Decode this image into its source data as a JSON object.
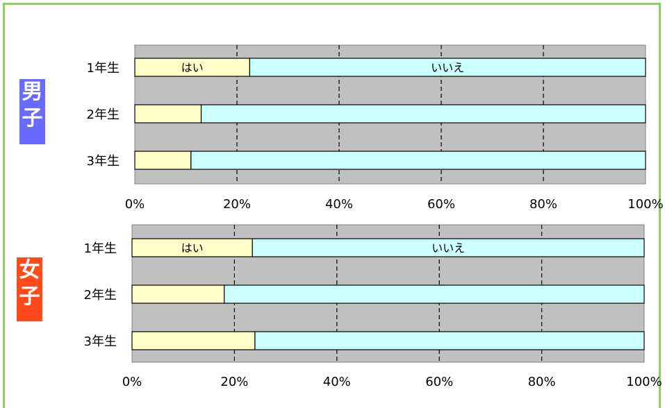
{
  "colors": {
    "frame": "#8fce5b",
    "plot_background": "#c0c0c0",
    "yes": "#ffffc8",
    "no": "#ccffff",
    "male_badge": "#6a6aff",
    "female_badge": "#ff4a1c"
  },
  "badges": {
    "male": [
      "男",
      "子"
    ],
    "female": [
      "女",
      "子"
    ]
  },
  "chart_data": [
    {
      "type": "bar",
      "orientation": "horizontal",
      "stacked": "percent",
      "group": "男子",
      "categories": [
        "1年生",
        "2年生",
        "3年生"
      ],
      "series": [
        {
          "name": "はい",
          "values": [
            22.5,
            13,
            11
          ]
        },
        {
          "name": "いいえ",
          "values": [
            77.5,
            87,
            89
          ]
        }
      ],
      "xlim": [
        0,
        100
      ],
      "xticks": [
        "0%",
        "20%",
        "40%",
        "60%",
        "80%",
        "100%"
      ],
      "grid": "vertical dashed",
      "series_labels_on_first_bar": true
    },
    {
      "type": "bar",
      "orientation": "horizontal",
      "stacked": "percent",
      "group": "女子",
      "categories": [
        "1年生",
        "2年生",
        "3年生"
      ],
      "series": [
        {
          "name": "はい",
          "values": [
            23.5,
            18,
            24
          ]
        },
        {
          "name": "いいえ",
          "values": [
            76.5,
            82,
            76
          ]
        }
      ],
      "xlim": [
        0,
        100
      ],
      "xticks": [
        "0%",
        "20%",
        "40%",
        "60%",
        "80%",
        "100%"
      ],
      "grid": "vertical dashed",
      "series_labels_on_first_bar": true
    }
  ]
}
